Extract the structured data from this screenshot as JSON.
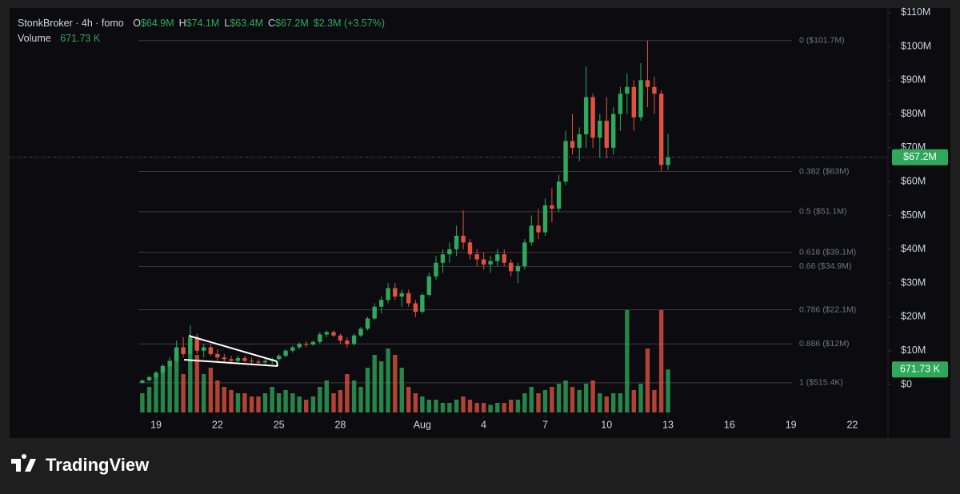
{
  "chart_data": {
    "type": "candlestick",
    "legend": {
      "symbol": "StonkBroker · 4h · fomo",
      "fields": [
        {
          "key": "O",
          "value": 64.9,
          "label": "$64.9M"
        },
        {
          "key": "H",
          "value": 74.1,
          "label": "$74.1M"
        },
        {
          "key": "L",
          "value": 63.4,
          "label": "$63.4M"
        },
        {
          "key": "C",
          "value": 67.2,
          "label": "$67.2M"
        }
      ],
      "change": {
        "value": 2.3,
        "percent": 3.57,
        "label": "$2.3M (+3.57%)"
      },
      "volume_name": "Volume",
      "volume_label": "671.73 K"
    },
    "x": [
      18.33,
      18.67,
      19,
      19.33,
      19.67,
      20,
      20.33,
      20.67,
      21,
      21.33,
      21.67,
      22,
      22.33,
      22.67,
      23,
      23.33,
      23.67,
      24,
      24.33,
      24.67,
      25,
      25.33,
      25.67,
      26,
      26.33,
      26.67,
      27,
      27.33,
      27.67,
      28,
      28.33,
      28.67,
      29,
      29.33,
      29.67,
      30,
      30.33,
      30.67,
      31,
      31.33,
      31.67,
      32,
      32.33,
      32.67,
      33,
      33.33,
      33.67,
      34,
      34.33,
      34.67,
      35,
      35.33,
      35.67,
      36,
      36.33,
      36.67,
      37,
      37.33,
      37.67,
      38,
      38.33,
      38.67,
      39,
      39.33,
      39.67,
      40,
      40.33,
      40.67,
      41,
      41.33,
      41.67,
      42,
      42.33,
      42.67,
      43,
      43.33,
      43.67,
      44
    ],
    "open": [
      0.5,
      1.2,
      2.2,
      3.5,
      5.5,
      7,
      11,
      9,
      14,
      10,
      11,
      9,
      8,
      7.5,
      7,
      7.8,
      7,
      6.8,
      6.5,
      7,
      7.5,
      8.5,
      10,
      11,
      12,
      11.8,
      12.6,
      14.8,
      15.5,
      14.5,
      13,
      12,
      14.5,
      16.5,
      19.5,
      23,
      25,
      28.5,
      26,
      27,
      24,
      21.5,
      26.5,
      32,
      36,
      38.5,
      40,
      44,
      42,
      38.5,
      37,
      35.5,
      36.5,
      38.5,
      36,
      33.5,
      35,
      42,
      47,
      45,
      53,
      52,
      60,
      72,
      70,
      74,
      85,
      73,
      78,
      70,
      80,
      86,
      88,
      79,
      90,
      88,
      86,
      64.9
    ],
    "high": [
      1.5,
      2.5,
      4,
      6,
      8,
      13,
      14,
      17.5,
      15,
      12,
      12,
      10.5,
      9,
      8.5,
      8.5,
      8.5,
      8,
      7.5,
      7.5,
      8,
      9,
      10.5,
      11.5,
      12.5,
      12.8,
      13,
      15.5,
      16,
      16,
      15,
      14,
      15,
      17,
      20,
      24,
      26,
      30,
      30,
      28,
      28,
      25,
      27,
      33,
      38,
      40,
      42,
      47,
      51.5,
      43,
      40,
      39,
      38,
      40,
      40,
      37,
      36,
      43,
      50,
      52,
      55,
      58,
      62,
      75,
      80,
      76,
      94,
      86,
      80,
      85,
      82,
      88,
      92,
      90,
      95,
      101.7,
      91,
      87,
      74.1
    ],
    "low": [
      0.3,
      1,
      1.8,
      3,
      4.5,
      6.5,
      8,
      8.5,
      9,
      8,
      8.5,
      7,
      6.5,
      6,
      6,
      6.5,
      6,
      5.8,
      5.5,
      6,
      7,
      8,
      9.5,
      10.5,
      11,
      11.5,
      12,
      14,
      14,
      12,
      11,
      11.5,
      14,
      16,
      19,
      21,
      24,
      25,
      23,
      23,
      20,
      21,
      26,
      31,
      33,
      36,
      38,
      40,
      37,
      35,
      34,
      33,
      35,
      35,
      32,
      30,
      34,
      41,
      43,
      44,
      48,
      51,
      59,
      68,
      66,
      70,
      70,
      67,
      67,
      68,
      75,
      80,
      75,
      78,
      82,
      80,
      63,
      63.4
    ],
    "close": [
      1.2,
      2.2,
      3.5,
      5.5,
      7,
      11,
      9,
      14,
      10,
      11,
      9,
      8,
      7.5,
      7,
      7.8,
      7,
      6.8,
      6.5,
      7,
      7.5,
      8.5,
      10,
      11,
      12,
      11.8,
      12.6,
      14.8,
      15.5,
      14.5,
      13,
      12,
      14.5,
      16.5,
      19.5,
      23,
      25,
      28.5,
      26,
      27,
      24,
      21.5,
      26.5,
      32,
      36,
      38.5,
      40,
      44,
      42,
      38.5,
      37,
      35.5,
      36.5,
      38.5,
      36,
      33.5,
      35,
      42,
      47,
      45,
      53,
      52,
      60,
      72,
      70,
      74,
      85,
      73,
      78,
      70,
      80,
      86,
      88,
      79,
      90,
      88,
      86,
      64.9,
      67.2
    ],
    "volume": {
      "name": "Volume",
      "values": [
        300,
        400,
        600,
        700,
        800,
        1000,
        600,
        1100,
        900,
        600,
        700,
        500,
        400,
        350,
        300,
        300,
        250,
        250,
        300,
        400,
        300,
        350,
        300,
        250,
        200,
        250,
        400,
        500,
        300,
        350,
        600,
        500,
        400,
        700,
        900,
        800,
        1000,
        900,
        700,
        400,
        300,
        250,
        200,
        200,
        150,
        150,
        200,
        250,
        200,
        150,
        150,
        120,
        150,
        150,
        200,
        200,
        300,
        400,
        300,
        350,
        400,
        450,
        500,
        400,
        350,
        450,
        500,
        300,
        250,
        300,
        300,
        1600,
        350,
        450,
        1000,
        350,
        1600,
        671.73
      ],
      "vlim": [
        0,
        1600
      ]
    },
    "up_color": "#2ea85a",
    "down_color": "#e0523f",
    "xlim": [
      11.85,
      54.74
    ],
    "xticks": [
      19,
      22,
      25,
      28,
      {
        "value": 32,
        "label": "Aug"
      },
      {
        "value": 35,
        "label": "4"
      },
      {
        "value": 38,
        "label": "7"
      },
      {
        "value": 41,
        "label": "10"
      },
      {
        "value": 44,
        "label": "13"
      },
      {
        "value": 47,
        "label": "16"
      },
      {
        "value": 50,
        "label": "19"
      },
      {
        "value": 53,
        "label": "22"
      }
    ],
    "ylim": [
      -8.27,
      110.87
    ],
    "yticks": [
      {
        "value": 0,
        "label": "$0"
      },
      {
        "value": 10,
        "label": "$10M"
      },
      {
        "value": 20,
        "label": "$20M"
      },
      {
        "value": 30,
        "label": "$30M"
      },
      {
        "value": 40,
        "label": "$40M"
      },
      {
        "value": 50,
        "label": "$50M"
      },
      {
        "value": 60,
        "label": "$60M"
      },
      {
        "value": 70,
        "label": "$70M"
      },
      {
        "value": 80,
        "label": "$80M"
      },
      {
        "value": 90,
        "label": "$90M"
      },
      {
        "value": 100,
        "label": "$100M"
      },
      {
        "value": 110,
        "label": "$110M"
      }
    ],
    "fib_levels": [
      {
        "value": 101.7,
        "label": "0 ($101.7M)"
      },
      {
        "value": 63,
        "label": "0.382 ($63M)"
      },
      {
        "value": 51.1,
        "label": "0.5 ($51.1M)"
      },
      {
        "value": 39.1,
        "label": "0.618 ($39.1M)"
      },
      {
        "value": 34.9,
        "label": "0.66 ($34.9M)"
      },
      {
        "value": 22.1,
        "label": "0.786 ($22.1M)"
      },
      {
        "value": 12,
        "label": "0.886 ($12M)"
      },
      {
        "value": 0.5154,
        "label": "1 ($515.4K)"
      }
    ],
    "last_price": {
      "value": 67.2,
      "label": "$67.2M"
    },
    "brand": "TradingView"
  }
}
